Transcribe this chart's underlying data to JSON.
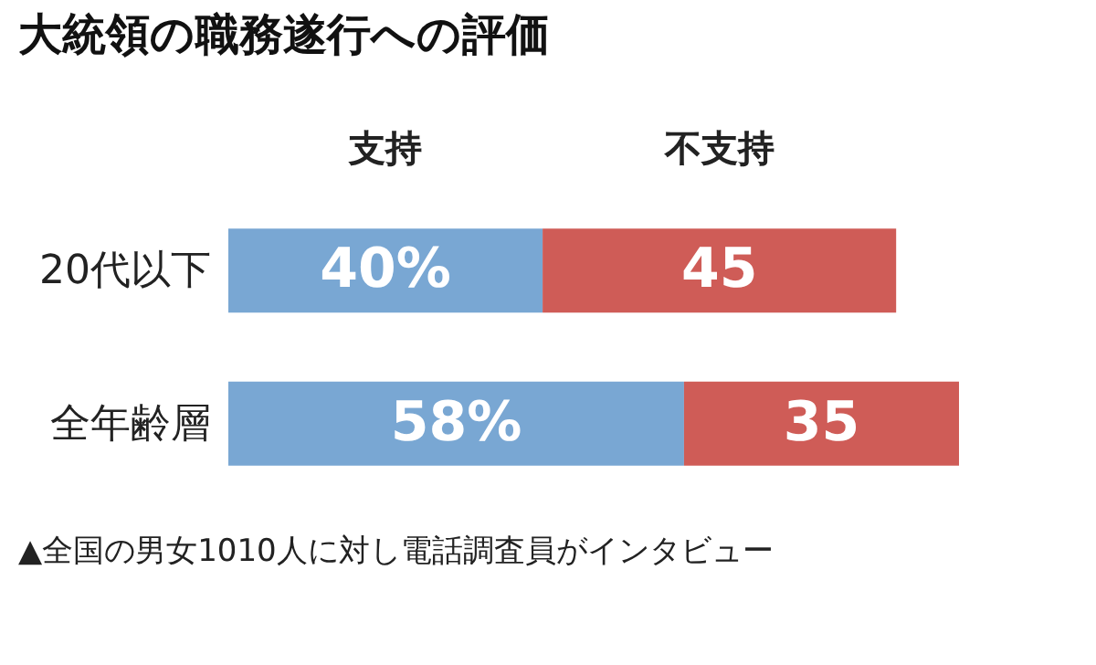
{
  "chart_data": {
    "type": "bar",
    "orientation": "horizontal",
    "stacked": true,
    "title": "大統領の職務遂行への評価",
    "categories": [
      "20代以下",
      "全年齢層"
    ],
    "series": [
      {
        "name": "支持",
        "color": "#79a7d3",
        "values": [
          40,
          58
        ],
        "value_labels": [
          "40%",
          "58%"
        ]
      },
      {
        "name": "不支持",
        "color": "#cf5c57",
        "values": [
          45,
          35
        ],
        "value_labels": [
          "45",
          "35"
        ]
      }
    ],
    "xlim": [
      0,
      93
    ],
    "tick_labels": "y",
    "legend": "top",
    "annotations": [
      "▲全国の男女1010人に対し電話調査員がインタビュー"
    ]
  }
}
